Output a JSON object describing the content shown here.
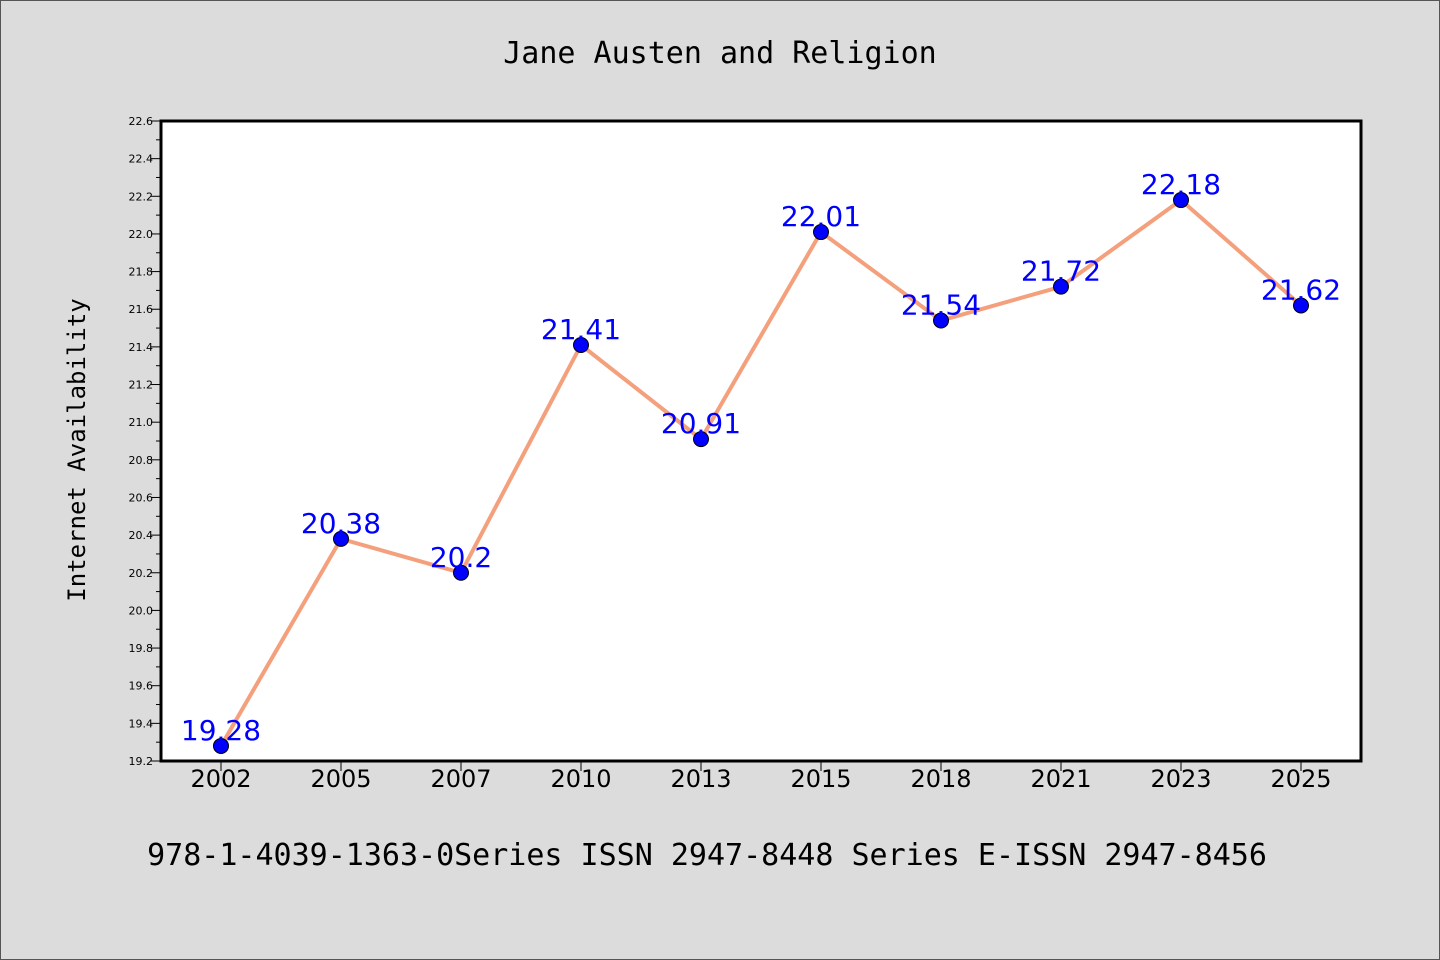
{
  "chart_data": {
    "type": "line",
    "title": "Jane Austen and Religion",
    "xlabel": "",
    "ylabel": "Internet Availability",
    "categories": [
      "2002",
      "2005",
      "2007",
      "2010",
      "2013",
      "2015",
      "2018",
      "2021",
      "2023",
      "2025"
    ],
    "series": [
      {
        "values": [
          19.28,
          20.38,
          20.2,
          21.41,
          20.91,
          22.01,
          21.54,
          21.72,
          22.18,
          21.62
        ],
        "data_labels": [
          "19.28",
          "20.38",
          "20.2",
          "21.41",
          "20.91",
          "22.01",
          "21.54",
          "21.72",
          "22.18",
          "21.62"
        ],
        "line_color": "#f4a07c",
        "marker_color": "#0000ff",
        "label_color": "#0000ff"
      }
    ],
    "ylim": [
      19.2,
      22.6
    ],
    "yticks": [
      "19.2",
      "19.4",
      "19.6",
      "19.8",
      "20.0",
      "20.2",
      "20.4",
      "20.6",
      "20.8",
      "21.0",
      "21.2",
      "21.4",
      "21.6",
      "21.8",
      "22.0",
      "22.2",
      "22.4",
      "22.6"
    ],
    "grid": false,
    "legend": "none",
    "footer": "978-1-4039-1363-0Series ISSN 2947-8448 Series E-ISSN 2947-8456",
    "colors": {
      "background": "#dcdcdc",
      "plot_background": "#ffffff",
      "axis": "#000000"
    }
  }
}
